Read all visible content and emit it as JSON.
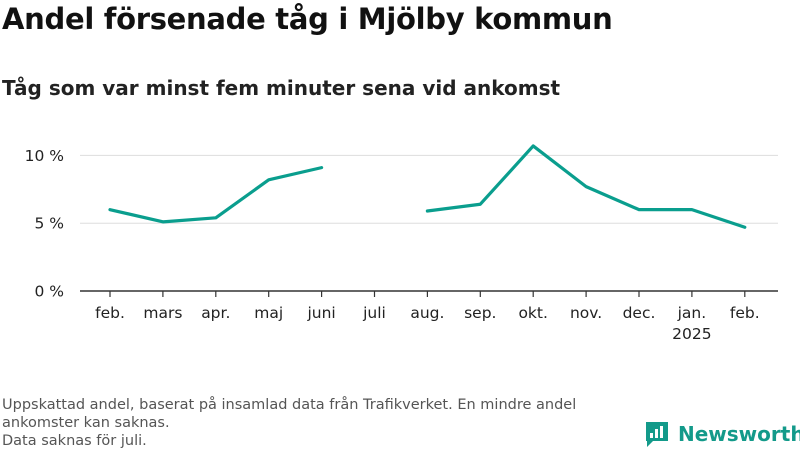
{
  "header": {
    "title": "Andel försenade tåg i Mjölby kommun",
    "subtitle": "Tåg som var minst fem minuter sena vid ankomst"
  },
  "chart_data": {
    "type": "line",
    "categories": [
      "feb.",
      "mars",
      "apr.",
      "maj",
      "juni",
      "juli",
      "aug.",
      "sep.",
      "okt.",
      "nov.",
      "dec.",
      "jan.",
      "feb."
    ],
    "category_sublabels": [
      "",
      "",
      "",
      "",
      "",
      "",
      "",
      "",
      "",
      "",
      "",
      "2025",
      ""
    ],
    "series": [
      {
        "values": [
          6.0,
          5.1,
          5.4,
          8.2,
          9.1,
          null,
          5.9,
          6.4,
          10.7,
          7.7,
          6.0,
          6.0,
          4.7
        ]
      }
    ],
    "y_ticks": [
      0,
      5,
      10
    ],
    "y_tick_labels": [
      "0 %",
      "5 %",
      "10 %"
    ],
    "ylim": [
      0,
      10.4
    ],
    "grid": true,
    "line_color": "#0a9e8e",
    "grid_color": "#dddddd",
    "baseline_color": "#333333"
  },
  "footer": {
    "note_lines": [
      "Uppskattad andel, baserat på insamlad data från Trafikverket. En mindre andel",
      "ankomster kan saknas.",
      "Data saknas för juli."
    ],
    "brand_name": "Newsworthy",
    "brand_icon": "newsworthy-logo-icon",
    "brand_color": "#139a8a"
  }
}
